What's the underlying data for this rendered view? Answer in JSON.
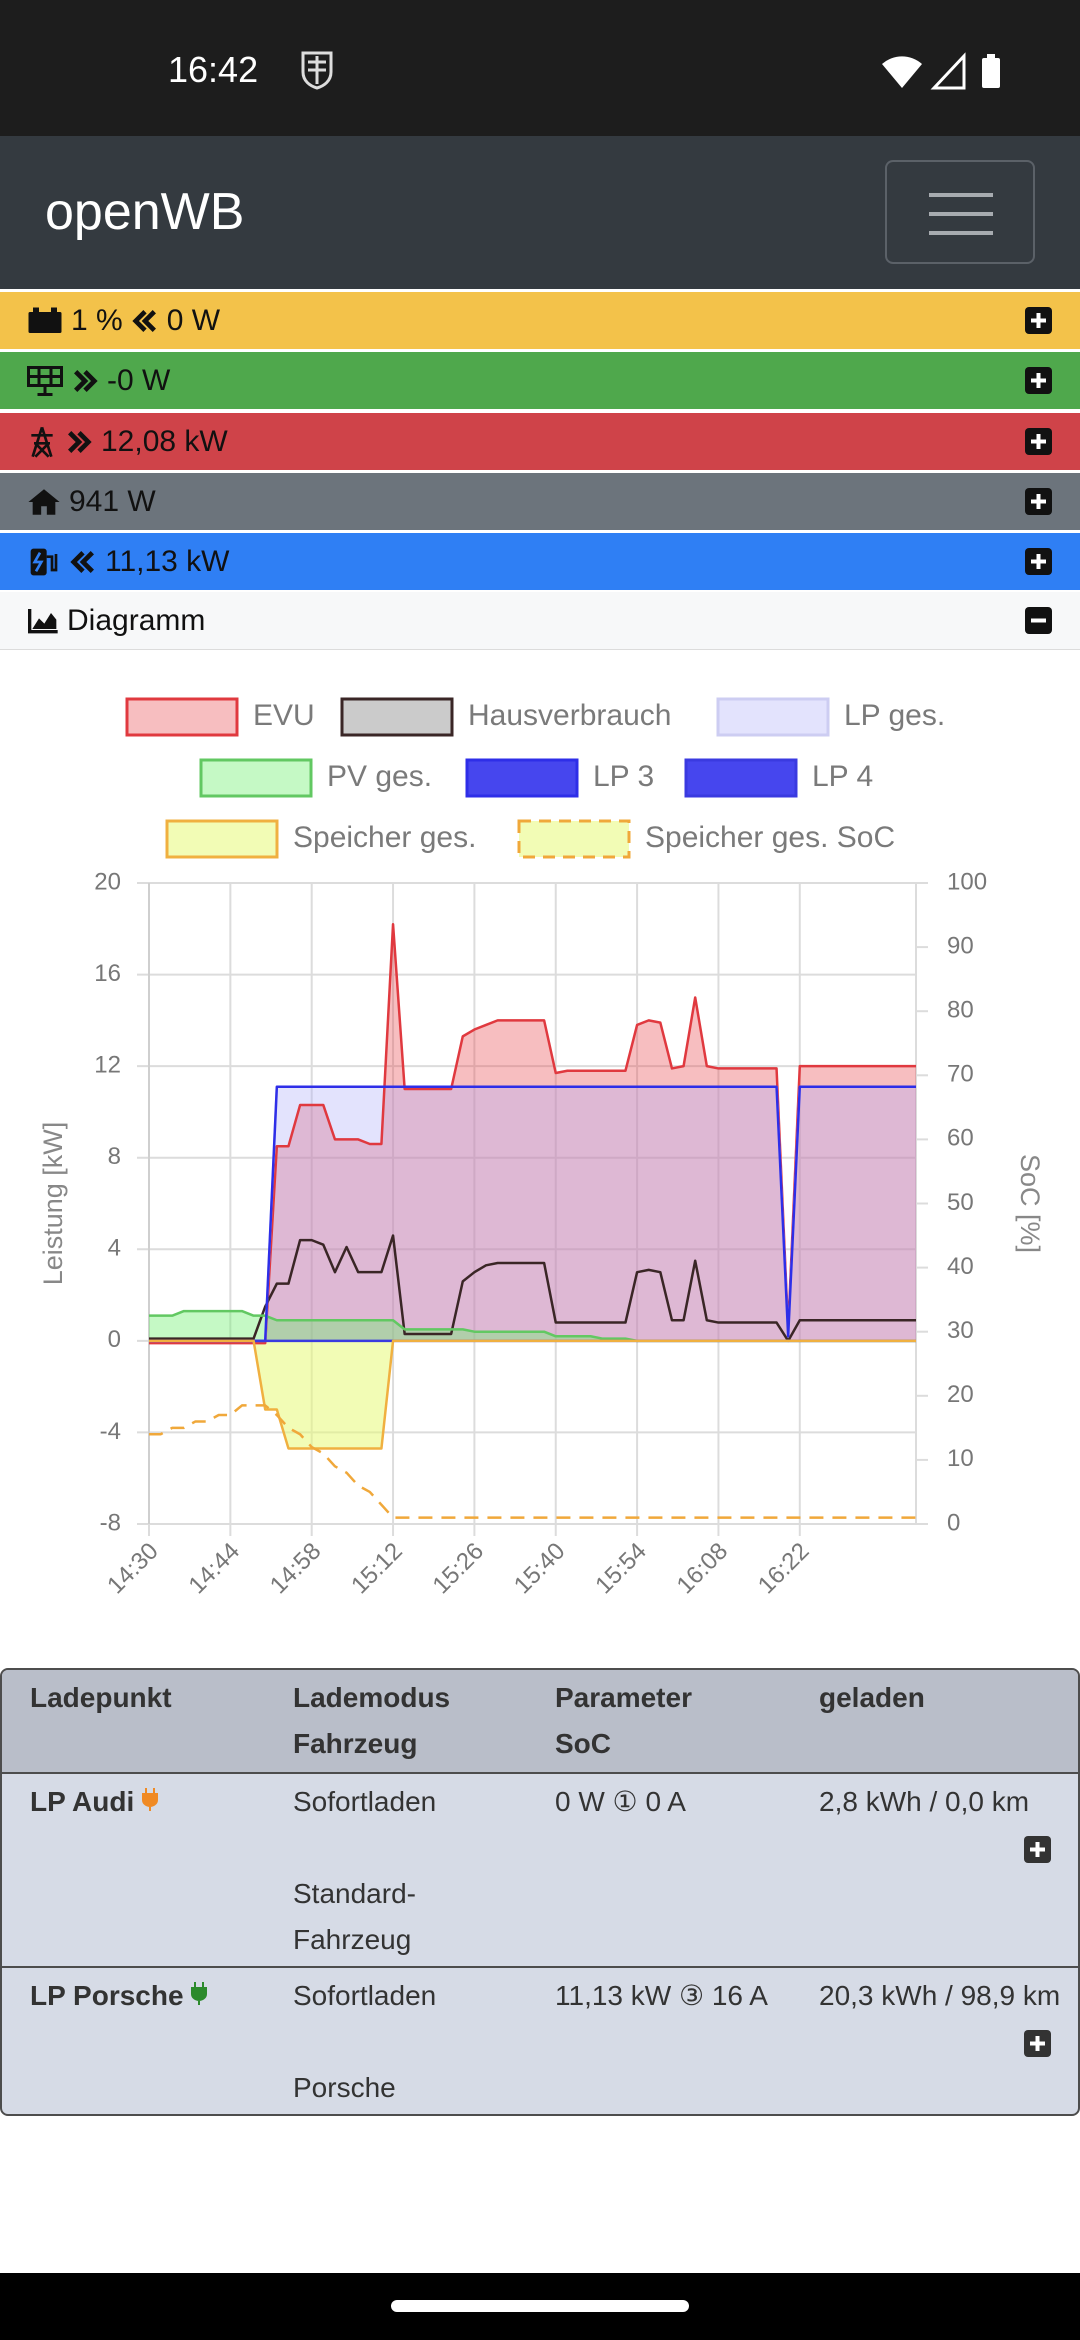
{
  "status_bar": {
    "time": "16:42"
  },
  "header": {
    "title": "openWB"
  },
  "summary": {
    "battery": {
      "soc": "1 %",
      "power": "0 W"
    },
    "pv": {
      "power": "-0 W"
    },
    "grid": {
      "power": "12,08 kW"
    },
    "house": {
      "power": "941 W"
    },
    "charging": {
      "power": "11,13 kW"
    },
    "diagram": {
      "title": "Diagramm"
    }
  },
  "chart_data": {
    "type": "line",
    "y_label": "Leistung [kW]",
    "y2_label": "SoC [%]",
    "x": [
      "14:30",
      null,
      null,
      null,
      null,
      null,
      null,
      "14:44",
      null,
      null,
      null,
      null,
      null,
      null,
      "14:58",
      null,
      null,
      null,
      null,
      null,
      null,
      "15:12",
      null,
      null,
      null,
      null,
      null,
      null,
      "15:26",
      null,
      null,
      null,
      null,
      null,
      null,
      "15:40",
      null,
      null,
      null,
      null,
      null,
      null,
      "15:54",
      null,
      null,
      null,
      null,
      null,
      null,
      "16:08",
      null,
      null,
      null,
      null,
      null,
      null,
      "16:22",
      null,
      null,
      null,
      null,
      null,
      null,
      null,
      null,
      null,
      null
    ],
    "ylim": [
      -8,
      20
    ],
    "yticks": [
      -8,
      -4,
      0,
      4,
      8,
      12,
      16,
      20
    ],
    "y2lim": [
      0,
      100
    ],
    "y2ticks": [
      0,
      10,
      20,
      30,
      40,
      50,
      60,
      70,
      80,
      90,
      100
    ],
    "grid": true,
    "series": [
      {
        "name": "EVU",
        "color": "#e0393f",
        "fill": "rgba(232,70,75,0.35)",
        "area": true,
        "values": [
          -0.1,
          -0.1,
          -0.1,
          -0.1,
          -0.1,
          -0.1,
          -0.1,
          -0.1,
          -0.1,
          -0.1,
          -0.1,
          8.5,
          8.5,
          10.3,
          10.3,
          10.3,
          8.8,
          8.8,
          8.8,
          8.6,
          8.6,
          18.2,
          11.0,
          11.0,
          11.0,
          11.0,
          11.0,
          13.3,
          13.6,
          13.8,
          14.0,
          14.0,
          14.0,
          14.0,
          14.0,
          11.7,
          11.8,
          11.8,
          11.8,
          11.8,
          11.8,
          11.8,
          13.8,
          14.0,
          13.9,
          11.9,
          12.0,
          15.0,
          12.0,
          11.9,
          11.9,
          11.9,
          11.9,
          11.9,
          11.9,
          0.5,
          12.0,
          12.0,
          12.0,
          12.0,
          12.0,
          12.0,
          12.0,
          12.0,
          12.0,
          12.0,
          12.0
        ]
      },
      {
        "name": "Hausverbrauch",
        "color": "#3a2626",
        "fill": "rgba(160,160,160,0.55)",
        "area": false,
        "values": [
          0.1,
          0.1,
          0.1,
          0.1,
          0.1,
          0.1,
          0.1,
          0.1,
          0.1,
          0.1,
          1.5,
          2.5,
          2.5,
          4.4,
          4.4,
          4.2,
          3.0,
          4.1,
          3.0,
          3.0,
          3.0,
          4.6,
          0.3,
          0.3,
          0.3,
          0.3,
          0.3,
          2.6,
          3.0,
          3.3,
          3.4,
          3.4,
          3.4,
          3.4,
          3.4,
          0.8,
          0.8,
          0.8,
          0.8,
          0.8,
          0.8,
          0.8,
          3.0,
          3.1,
          3.0,
          0.9,
          0.9,
          3.5,
          0.9,
          0.8,
          0.8,
          0.8,
          0.8,
          0.8,
          0.8,
          0.0,
          0.9,
          0.9,
          0.9,
          0.9,
          0.9,
          0.9,
          0.9,
          0.9,
          0.9,
          0.9,
          0.9
        ]
      },
      {
        "name": "LP ges.",
        "color": "#cdcdf2",
        "fill": "rgba(175,175,250,0.35)",
        "area": true,
        "values": [
          0,
          0,
          0,
          0,
          0,
          0,
          0,
          0,
          0,
          0,
          0,
          11.1,
          11.1,
          11.1,
          11.1,
          11.1,
          11.1,
          11.1,
          11.1,
          11.1,
          11.1,
          11.1,
          11.1,
          11.1,
          11.1,
          11.1,
          11.1,
          11.1,
          11.1,
          11.1,
          11.1,
          11.1,
          11.1,
          11.1,
          11.1,
          11.1,
          11.1,
          11.1,
          11.1,
          11.1,
          11.1,
          11.1,
          11.1,
          11.1,
          11.1,
          11.1,
          11.1,
          11.1,
          11.1,
          11.1,
          11.1,
          11.1,
          11.1,
          11.1,
          11.1,
          0.2,
          11.1,
          11.1,
          11.1,
          11.1,
          11.1,
          11.1,
          11.1,
          11.1,
          11.1,
          11.1,
          11.1
        ]
      },
      {
        "name": "PV ges.",
        "color": "#62c862",
        "fill": "rgba(110,240,110,0.4)",
        "area": true,
        "values": [
          1.1,
          1.1,
          1.1,
          1.3,
          1.3,
          1.3,
          1.3,
          1.3,
          1.3,
          1.1,
          1.1,
          0.9,
          0.9,
          0.9,
          0.9,
          0.9,
          0.9,
          0.9,
          0.9,
          0.9,
          0.9,
          0.9,
          0.5,
          0.5,
          0.5,
          0.5,
          0.5,
          0.5,
          0.4,
          0.4,
          0.4,
          0.4,
          0.4,
          0.4,
          0.4,
          0.2,
          0.2,
          0.2,
          0.2,
          0.1,
          0.1,
          0.1,
          0,
          0,
          0,
          0,
          0,
          0,
          0,
          0,
          0,
          0,
          0,
          0,
          0,
          0,
          0,
          0,
          0,
          0,
          0,
          0,
          0,
          0,
          0,
          0,
          0
        ]
      },
      {
        "name": "LP 3",
        "color": "#2e2ee8",
        "fill": "#4646ee",
        "area": false,
        "values": [
          0,
          0,
          0,
          0,
          0,
          0,
          0,
          0,
          0,
          0,
          0,
          11.1,
          11.1,
          11.1,
          11.1,
          11.1,
          11.1,
          11.1,
          11.1,
          11.1,
          11.1,
          11.1,
          11.1,
          11.1,
          11.1,
          11.1,
          11.1,
          11.1,
          11.1,
          11.1,
          11.1,
          11.1,
          11.1,
          11.1,
          11.1,
          11.1,
          11.1,
          11.1,
          11.1,
          11.1,
          11.1,
          11.1,
          11.1,
          11.1,
          11.1,
          11.1,
          11.1,
          11.1,
          11.1,
          11.1,
          11.1,
          11.1,
          11.1,
          11.1,
          11.1,
          0.2,
          11.1,
          11.1,
          11.1,
          11.1,
          11.1,
          11.1,
          11.1,
          11.1,
          11.1,
          11.1,
          11.1
        ]
      },
      {
        "name": "LP 4",
        "color": "#3a3ae0",
        "fill": "#4646ee",
        "area": false,
        "values": [
          0,
          0,
          0,
          0,
          0,
          0,
          0,
          0,
          0,
          0,
          0,
          0,
          0,
          0,
          0,
          0,
          0,
          0,
          0,
          0,
          0,
          0,
          0,
          0,
          0,
          0,
          0,
          0,
          0,
          0,
          0,
          0,
          0,
          0,
          0,
          0,
          0,
          0,
          0,
          0,
          0,
          0,
          0,
          0,
          0,
          0,
          0,
          0,
          0,
          0,
          0,
          0,
          0,
          0,
          0,
          0,
          0,
          0,
          0,
          0,
          0,
          0,
          0,
          0,
          0,
          0,
          0
        ]
      },
      {
        "name": "Speicher ges.",
        "color": "#f0b040",
        "fill": "rgba(232,250,120,0.55)",
        "area": true,
        "values": [
          0,
          0,
          0,
          0,
          0,
          0,
          0,
          0,
          0,
          0,
          -3.0,
          -3.0,
          -4.7,
          -4.7,
          -4.7,
          -4.7,
          -4.7,
          -4.7,
          -4.7,
          -4.7,
          -4.7,
          0,
          0,
          0,
          0,
          0,
          0,
          0,
          0,
          0,
          0,
          0,
          0,
          0,
          0,
          0,
          0,
          0,
          0,
          0,
          0,
          0,
          0,
          0,
          0,
          0,
          0,
          0,
          0,
          0,
          0,
          0,
          0,
          0,
          0,
          0,
          0,
          0,
          0,
          0,
          0,
          0,
          0,
          0,
          0,
          0,
          0
        ]
      },
      {
        "name": "Speicher ges. SoC",
        "color": "#f0a83a",
        "fill": "rgba(232,250,120,0.55)",
        "area": false,
        "dash": true,
        "axis": "y2",
        "values": [
          14,
          14,
          15,
          15,
          16,
          16,
          17,
          17,
          18.5,
          18.5,
          18.5,
          17,
          15,
          14,
          12,
          11,
          9,
          8,
          6,
          5,
          3,
          1,
          1,
          1,
          1,
          1,
          1,
          1,
          1,
          1,
          1,
          1,
          1,
          1,
          1,
          1,
          1,
          1,
          1,
          1,
          1,
          1,
          1,
          1,
          1,
          1,
          1,
          1,
          1,
          1,
          1,
          1,
          1,
          1,
          1,
          1,
          1,
          1,
          1,
          1,
          1,
          1,
          1,
          1,
          1,
          1,
          1
        ]
      }
    ]
  },
  "table": {
    "columns": [
      [
        "Ladepunkt"
      ],
      [
        "Lademodus",
        "Fahrzeug"
      ],
      [
        "Parameter",
        "SoC"
      ],
      [
        "geladen"
      ]
    ],
    "rows": [
      {
        "name": "LP Audi",
        "mode": "Sofortladen",
        "vehicle": "Standard-Fahrzeug",
        "parameter": "0 W ① 0 A",
        "charged": "2,8 kWh / 0,0 km"
      },
      {
        "name": "LP Porsche",
        "mode": "Sofortladen",
        "vehicle": "Porsche",
        "parameter": "11,13 kW ③ 16 A",
        "charged": "20,3 kWh / 98,9 km"
      }
    ]
  }
}
